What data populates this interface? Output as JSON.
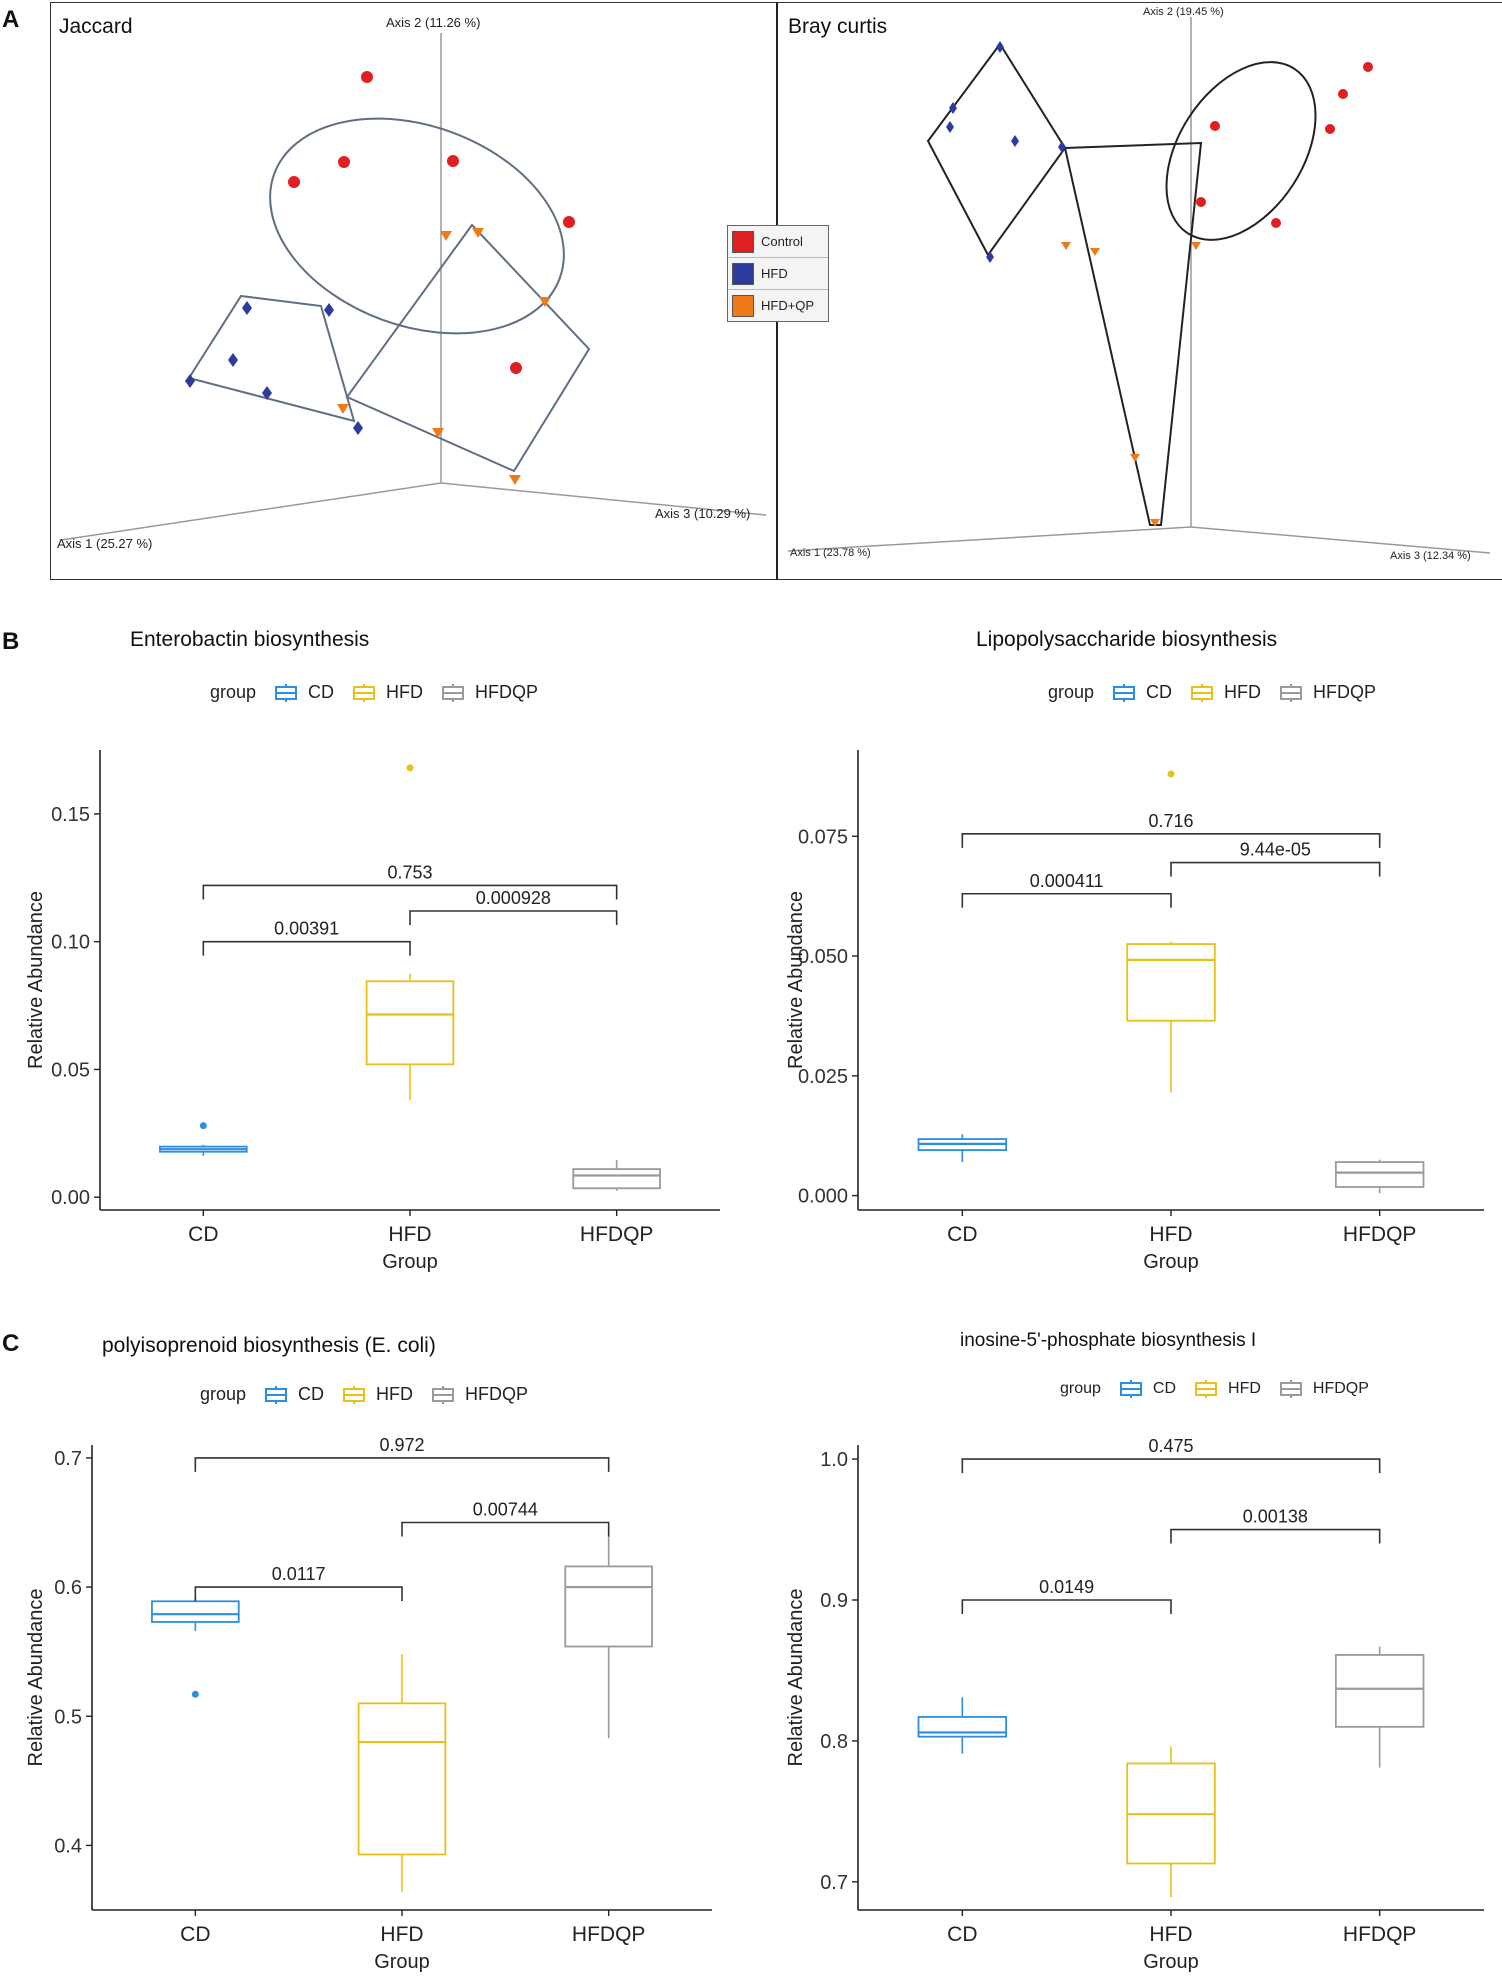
{
  "panels": {
    "a": "A",
    "b": "B",
    "c": "C"
  },
  "pcoa": {
    "left": {
      "title": "Jaccard",
      "axis2_label": "Axis 2 (11.26 %)",
      "axis1_label": "Axis 1 (25.27 %)",
      "axis3_label": "Axis 3 (10.29 %)"
    },
    "right": {
      "title": "Bray curtis",
      "axis2_label": "Axis 2 (19.45 %)",
      "axis1_label": "Axis 1 (23.78 %)",
      "axis3_label": "Axis 3 (12.34 %)"
    },
    "legend": [
      {
        "label": "Control",
        "color": "#e02020"
      },
      {
        "label": "HFD",
        "color": "#2b3b9e"
      },
      {
        "label": "HFD+QP",
        "color": "#ef7a1a"
      }
    ]
  },
  "colors": {
    "CD": "#2c8ee0",
    "HFD": "#e8c01a",
    "HFDQP": "#9a9a9a",
    "control_pt": "#e02020",
    "hfd_pt": "#2b3b9e",
    "hfdqp_pt": "#ef7a1a"
  },
  "boxplot_legend": {
    "title": "group",
    "items": [
      "CD",
      "HFD",
      "HFDQP"
    ]
  },
  "chart_data": [
    {
      "type": "box",
      "title": "Enterobactin biosynthesis",
      "xlabel": "Group",
      "ylabel": "Relative Abundance",
      "categories": [
        "CD",
        "HFD",
        "HFDQP"
      ],
      "ylim": [
        -0.005,
        0.175
      ],
      "yticks": [
        0.0,
        0.05,
        0.1,
        0.15
      ],
      "yticklabels": [
        "0.00",
        "0.05",
        "0.10",
        "0.15"
      ],
      "boxes": [
        {
          "group": "CD",
          "q1": 0.0178,
          "median": 0.0188,
          "q3": 0.0198,
          "whisker_low": 0.0162,
          "whisker_high": 0.0205,
          "outliers": [
            0.028
          ]
        },
        {
          "group": "HFD",
          "q1": 0.052,
          "median": 0.0715,
          "q3": 0.0845,
          "whisker_low": 0.038,
          "whisker_high": 0.0875,
          "outliers": [
            0.168
          ]
        },
        {
          "group": "HFDQP",
          "q1": 0.0035,
          "median": 0.0085,
          "q3": 0.011,
          "whisker_low": 0.0025,
          "whisker_high": 0.0145,
          "outliers": []
        }
      ],
      "comparisons": [
        {
          "from": "CD",
          "to": "HFD",
          "y": 0.1,
          "p": "0.00391"
        },
        {
          "from": "HFD",
          "to": "HFDQP",
          "y": 0.112,
          "p": "0.000928"
        },
        {
          "from": "CD",
          "to": "HFDQP",
          "y": 0.122,
          "p": "0.753"
        }
      ]
    },
    {
      "type": "box",
      "title": "Lipopolysaccharide biosynthesis",
      "xlabel": "Group",
      "ylabel": "Relative Abundance",
      "categories": [
        "CD",
        "HFD",
        "HFDQP"
      ],
      "ylim": [
        -0.003,
        0.093
      ],
      "yticks": [
        0.0,
        0.025,
        0.05,
        0.075
      ],
      "yticklabels": [
        "0.000",
        "0.025",
        "0.050",
        "0.075"
      ],
      "boxes": [
        {
          "group": "CD",
          "q1": 0.0095,
          "median": 0.0108,
          "q3": 0.0118,
          "whisker_low": 0.007,
          "whisker_high": 0.0128,
          "outliers": []
        },
        {
          "group": "HFD",
          "q1": 0.0365,
          "median": 0.0492,
          "q3": 0.0525,
          "whisker_low": 0.0215,
          "whisker_high": 0.053,
          "outliers": [
            0.088
          ]
        },
        {
          "group": "HFDQP",
          "q1": 0.0018,
          "median": 0.0048,
          "q3": 0.007,
          "whisker_low": 0.0005,
          "whisker_high": 0.0075,
          "outliers": []
        }
      ],
      "comparisons": [
        {
          "from": "CD",
          "to": "HFD",
          "y": 0.063,
          "p": "0.000411"
        },
        {
          "from": "HFD",
          "to": "HFDQP",
          "y": 0.0695,
          "p": "9.44e-05"
        },
        {
          "from": "CD",
          "to": "HFDQP",
          "y": 0.0755,
          "p": "0.716"
        }
      ]
    },
    {
      "type": "box",
      "title": "polyisoprenoid biosynthesis (E. coli)",
      "xlabel": "Group",
      "ylabel": "Relative Abundance",
      "categories": [
        "CD",
        "HFD",
        "HFDQP"
      ],
      "ylim": [
        0.35,
        0.71
      ],
      "yticks": [
        0.4,
        0.5,
        0.6,
        0.7
      ],
      "yticklabels": [
        "0.4",
        "0.5",
        "0.6",
        "0.7"
      ],
      "boxes": [
        {
          "group": "CD",
          "q1": 0.573,
          "median": 0.579,
          "q3": 0.589,
          "whisker_low": 0.566,
          "whisker_high": 0.592,
          "outliers": [
            0.517
          ]
        },
        {
          "group": "HFD",
          "q1": 0.393,
          "median": 0.48,
          "q3": 0.51,
          "whisker_low": 0.364,
          "whisker_high": 0.548,
          "outliers": []
        },
        {
          "group": "HFDQP",
          "q1": 0.554,
          "median": 0.6,
          "q3": 0.616,
          "whisker_low": 0.483,
          "whisker_high": 0.64,
          "outliers": []
        }
      ],
      "comparisons": [
        {
          "from": "CD",
          "to": "HFD",
          "y": 0.6,
          "p": "0.0117"
        },
        {
          "from": "HFD",
          "to": "HFDQP",
          "y": 0.65,
          "p": "0.00744"
        },
        {
          "from": "CD",
          "to": "HFDQP",
          "y": 0.7,
          "p": "0.972"
        }
      ]
    },
    {
      "type": "box",
      "title": "inosine-5'-phosphate biosynthesis I",
      "xlabel": "Group",
      "ylabel": "Relative Abundance",
      "categories": [
        "CD",
        "HFD",
        "HFDQP"
      ],
      "ylim": [
        0.68,
        1.01
      ],
      "yticks": [
        0.7,
        0.8,
        0.9,
        1.0
      ],
      "yticklabels": [
        "0.7",
        "0.8",
        "0.9",
        "1.0"
      ],
      "boxes": [
        {
          "group": "CD",
          "q1": 0.803,
          "median": 0.806,
          "q3": 0.817,
          "whisker_low": 0.791,
          "whisker_high": 0.831,
          "outliers": []
        },
        {
          "group": "HFD",
          "q1": 0.713,
          "median": 0.748,
          "q3": 0.784,
          "whisker_low": 0.689,
          "whisker_high": 0.796,
          "outliers": []
        },
        {
          "group": "HFDQP",
          "q1": 0.81,
          "median": 0.837,
          "q3": 0.861,
          "whisker_low": 0.781,
          "whisker_high": 0.867,
          "outliers": []
        }
      ],
      "comparisons": [
        {
          "from": "CD",
          "to": "HFD",
          "y": 0.9,
          "p": "0.0149"
        },
        {
          "from": "HFD",
          "to": "HFDQP",
          "y": 0.95,
          "p": "0.00138"
        },
        {
          "from": "CD",
          "to": "HFDQP",
          "y": 1.0,
          "p": "0.475"
        }
      ]
    }
  ]
}
